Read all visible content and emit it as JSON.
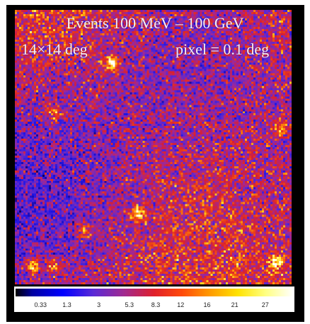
{
  "image": {
    "subject": "gamma-ray counts map",
    "colormap": "black-blue-red-yellow-white"
  },
  "overlay": {
    "title": "Events 100 MeV – 100 GeV",
    "field_of_view": "14×14 deg",
    "pixel_scale": "pixel = 0.1 deg"
  },
  "colorbar": {
    "ticks": [
      "0.33",
      "1.3",
      "3",
      "5.3",
      "8.3",
      "12",
      "16",
      "21",
      "27"
    ],
    "tick_fractions": [
      0.09,
      0.185,
      0.3,
      0.41,
      0.505,
      0.595,
      0.69,
      0.79,
      0.9
    ]
  },
  "sources": [
    {
      "name": "bright-source",
      "u": 0.345,
      "v": 0.195,
      "strength": 1.0
    },
    {
      "name": "faint-source-left",
      "u": 0.14,
      "v": 0.37,
      "strength": 0.55
    },
    {
      "name": "source-right-edge",
      "u": 0.96,
      "v": 0.43,
      "strength": 0.7
    },
    {
      "name": "source-center-lower",
      "u": 0.44,
      "v": 0.74,
      "strength": 0.75
    },
    {
      "name": "source-left-lower",
      "u": 0.25,
      "v": 0.8,
      "strength": 0.5
    },
    {
      "name": "source-bottom-left",
      "u": 0.06,
      "v": 0.93,
      "strength": 0.9
    },
    {
      "name": "source-bottom-left-2",
      "u": 0.14,
      "v": 0.93,
      "strength": 0.6
    },
    {
      "name": "source-bottom-right",
      "u": 0.94,
      "v": 0.92,
      "strength": 0.85
    }
  ]
}
